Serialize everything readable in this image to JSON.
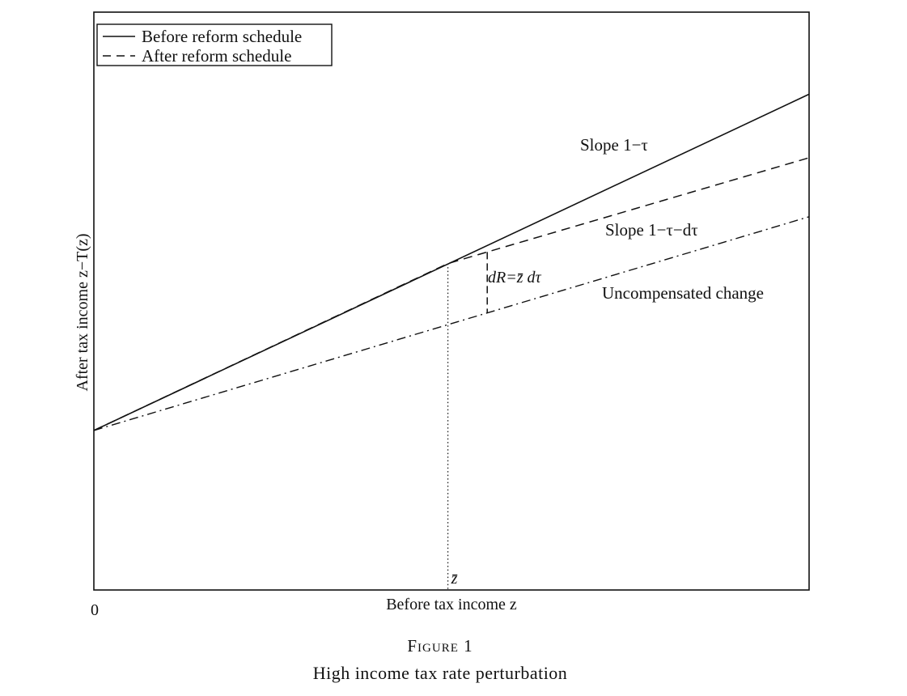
{
  "chart_data": {
    "type": "line",
    "xlabel": "Before tax income z",
    "ylabel": "After tax income z−T(z)",
    "origin_label": "0",
    "zbar_label": "z̄",
    "xlim": [
      0,
      1
    ],
    "ylim": [
      0,
      1
    ],
    "legend": {
      "placement": "top-left",
      "entries": [
        {
          "label": "Before reform schedule",
          "style": "solid"
        },
        {
          "label": "After reform schedule",
          "style": "dashed"
        }
      ]
    },
    "series": [
      {
        "name": "Before reform schedule",
        "style": "solid",
        "x": [
          0,
          1
        ],
        "y": [
          0.276,
          0.858
        ]
      },
      {
        "name": "After reform schedule",
        "style": "dashed",
        "x": [
          0,
          0.495,
          1
        ],
        "y": [
          0.276,
          0.565,
          0.748
        ]
      },
      {
        "name": "",
        "style": "dashdot",
        "x": [
          0,
          1
        ],
        "y": [
          0.276,
          0.646
        ]
      }
    ],
    "zbar": 0.495,
    "annotations": [
      {
        "id": "slope-before",
        "text": "Slope 1−τ"
      },
      {
        "id": "slope-after",
        "text": "Slope 1−τ−dτ"
      },
      {
        "id": "uncompensated",
        "text": "Uncompensated change"
      },
      {
        "id": "dR",
        "text": "dR=z̄ dτ"
      }
    ]
  },
  "caption": {
    "figure_number": "Figure 1",
    "title": "High income tax rate perturbation"
  }
}
